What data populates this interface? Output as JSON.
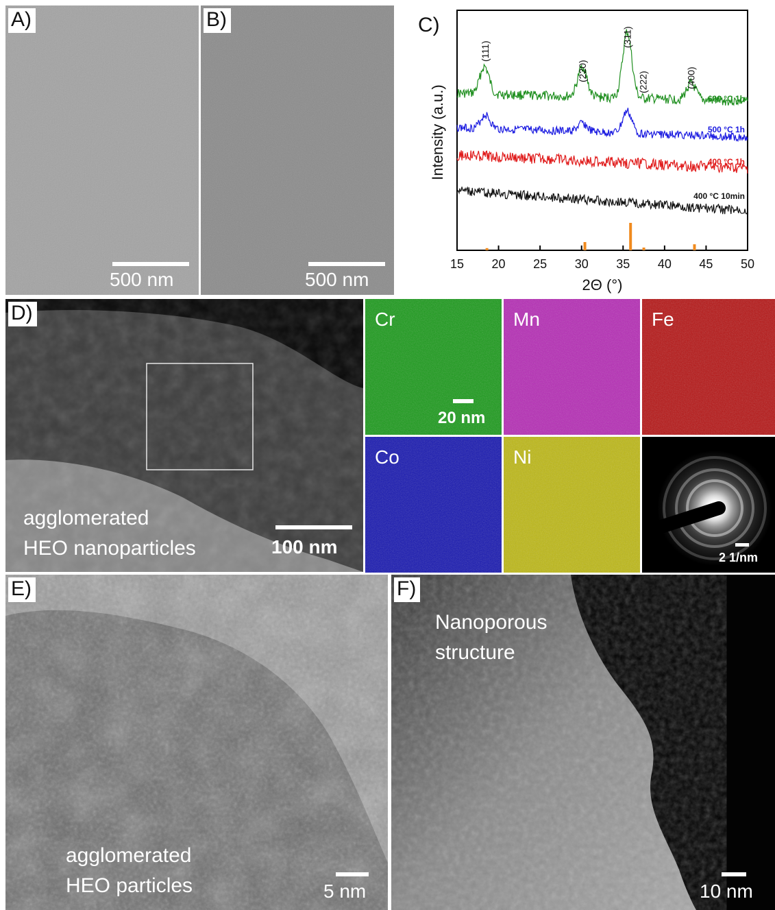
{
  "panels": {
    "a": {
      "label": "A)",
      "scalebar": "500 nm"
    },
    "b": {
      "label": "B)",
      "scalebar": "500 nm"
    },
    "c": {
      "label": "C)"
    },
    "d": {
      "label": "D)",
      "caption_line1": "agglomerated",
      "caption_line2": "HEO nanoparticles",
      "scalebar": "100 nm"
    },
    "e": {
      "label": "E)",
      "caption_line1": "agglomerated",
      "caption_line2": "HEO particles",
      "scalebar": "5 nm"
    },
    "f": {
      "label": "F)",
      "caption_line1": "Nanoporous",
      "caption_line2": "structure",
      "scalebar": "10 nm"
    }
  },
  "eds_maps": [
    {
      "element": "Cr",
      "color": "#1a9a1a"
    },
    {
      "element": "Mn",
      "color": "#b52ab5"
    },
    {
      "element": "Fe",
      "color": "#b51414"
    },
    {
      "element": "Co",
      "color": "#1616b0"
    },
    {
      "element": "Ni",
      "color": "#bdb814"
    }
  ],
  "eds_scalebar": "20 nm",
  "saed_scalebar": "2 1/nm",
  "chart_data": {
    "type": "line",
    "xlabel": "2Θ (°)",
    "ylabel": "Intensity (a.u.)",
    "xlim": [
      15,
      50
    ],
    "xticks": [
      15,
      20,
      25,
      30,
      35,
      40,
      45,
      50
    ],
    "grid": false,
    "series": [
      {
        "name": "600 °C 1h",
        "color": "#1f8f1f",
        "peaks": [
          [
            18.3,
            1.0
          ],
          [
            30.1,
            1.1
          ],
          [
            35.5,
            2.4
          ],
          [
            43.2,
            0.6
          ]
        ]
      },
      {
        "name": "500 °C 1h",
        "color": "#1a1ae0",
        "peaks": [
          [
            18.4,
            0.5
          ],
          [
            30.1,
            0.3
          ],
          [
            35.5,
            0.8
          ]
        ]
      },
      {
        "name": "400 °C 1h",
        "color": "#e01a1a",
        "peaks": []
      },
      {
        "name": "400 °C 10min",
        "color": "#111111",
        "peaks": []
      }
    ],
    "peak_labels": [
      {
        "hkl": "(111)",
        "x": 18.4
      },
      {
        "hkl": "(220)",
        "x": 30.1
      },
      {
        "hkl": "(311)",
        "x": 35.5
      },
      {
        "hkl": "(222)",
        "x": 37.4
      },
      {
        "hkl": "(400)",
        "x": 43.2
      }
    ],
    "reference_bars": {
      "color": "#f08a1e",
      "positions": [
        18.6,
        30.4,
        35.9,
        37.5,
        43.6
      ],
      "heights": [
        0.08,
        0.3,
        1.0,
        0.1,
        0.22
      ]
    }
  }
}
